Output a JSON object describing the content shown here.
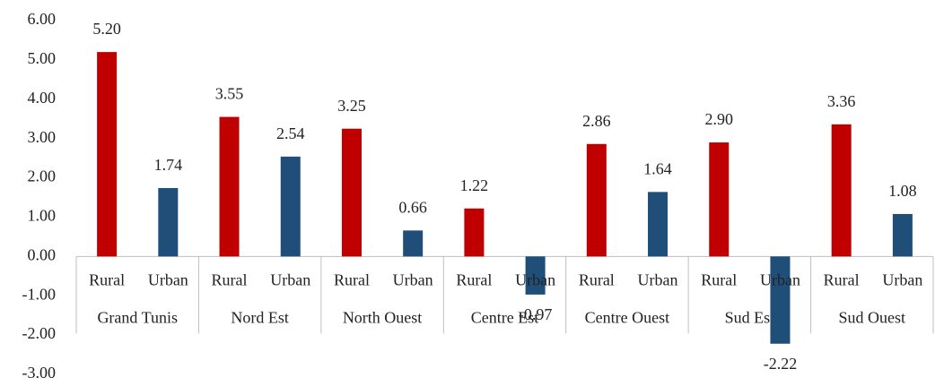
{
  "chart_data": {
    "type": "bar",
    "categories": [
      "Rural",
      "Urban",
      "Rural",
      "Urban",
      "Rural",
      "Urban",
      "Rural",
      "Urban",
      "Rural",
      "Urban",
      "Rural",
      "Urban",
      "Rural",
      "Urban"
    ],
    "groups": [
      "Grand Tunis",
      "Nord Est",
      "North Ouest",
      "Centre Est",
      "Centre Ouest",
      "Sud Est",
      "Sud Ouest"
    ],
    "values": [
      5.2,
      1.74,
      3.55,
      2.54,
      3.25,
      0.66,
      1.22,
      -0.97,
      2.86,
      1.64,
      2.9,
      -2.22,
      3.36,
      1.08
    ],
    "value_labels": [
      "5.20",
      "1.74",
      "3.55",
      "2.54",
      "3.25",
      "0.66",
      "1.22",
      "-0.97",
      "2.86",
      "1.64",
      "2.90",
      "-2.22",
      "3.36",
      "1.08"
    ],
    "colors": [
      "#c00000",
      "#1f4e79",
      "#c00000",
      "#1f4e79",
      "#c00000",
      "#1f4e79",
      "#c00000",
      "#1f4e79",
      "#c00000",
      "#1f4e79",
      "#c00000",
      "#1f4e79",
      "#c00000",
      "#1f4e79"
    ],
    "ylim": [
      -3,
      6
    ],
    "yticks": [
      {
        "value": -3,
        "label": "-3.00"
      },
      {
        "value": -2,
        "label": "-2.00"
      },
      {
        "value": -1,
        "label": "-1.00"
      },
      {
        "value": 0,
        "label": "0.00"
      },
      {
        "value": 1,
        "label": "1.00"
      },
      {
        "value": 2,
        "label": "2.00"
      },
      {
        "value": 3,
        "label": "3.00"
      },
      {
        "value": 4,
        "label": "4.00"
      },
      {
        "value": 5,
        "label": "5.00"
      },
      {
        "value": 6,
        "label": "6.00"
      }
    ],
    "grid": false
  }
}
